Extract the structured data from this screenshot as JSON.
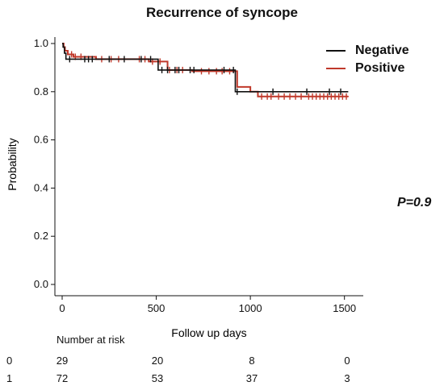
{
  "chart_data": {
    "type": "line",
    "title": "Recurrence of syncope",
    "xlabel": "Follow up days",
    "ylabel": "Probability",
    "xlim": [
      0,
      1600
    ],
    "ylim": [
      0,
      1.0
    ],
    "xticks": [
      0,
      500,
      1000,
      1500
    ],
    "yticks": [
      0.0,
      0.2,
      0.4,
      0.6,
      0.8,
      1.0
    ],
    "x_tick_labels": [
      "0",
      "500",
      "1000",
      "1500"
    ],
    "y_tick_labels": [
      "0.0",
      "0.2",
      "0.4",
      "0.6",
      "0.8",
      "1.0"
    ],
    "legend_position": "top-right",
    "annotation": "P=0.9",
    "series": [
      {
        "name": "Negative",
        "color": "#111111",
        "step_x": [
          0,
          5,
          12,
          20,
          510,
          920,
          1520
        ],
        "step_y": [
          1.0,
          0.985,
          0.96,
          0.935,
          0.89,
          0.8,
          0.8
        ],
        "censor_x": [
          40,
          120,
          140,
          160,
          250,
          330,
          420,
          470,
          530,
          560,
          600,
          620,
          680,
          700,
          860,
          910,
          930,
          1120,
          1300,
          1420,
          1480
        ]
      },
      {
        "name": "Positive",
        "color": "#c0392b",
        "step_x": [
          0,
          8,
          15,
          30,
          60,
          180,
          460,
          560,
          690,
          930,
          1000,
          1040,
          1520
        ],
        "step_y": [
          1.0,
          0.985,
          0.97,
          0.955,
          0.945,
          0.935,
          0.925,
          0.89,
          0.885,
          0.82,
          0.8,
          0.78,
          0.78
        ],
        "censor_x": [
          50,
          70,
          100,
          210,
          260,
          300,
          410,
          440,
          480,
          520,
          570,
          610,
          640,
          740,
          780,
          820,
          850,
          890,
          1060,
          1090,
          1110,
          1150,
          1180,
          1210,
          1240,
          1270,
          1310,
          1330,
          1350,
          1370,
          1390,
          1410,
          1430,
          1450,
          1470,
          1490,
          1510
        ]
      }
    ]
  },
  "risk_table": {
    "title": "Number at risk",
    "times": [
      0,
      500,
      1000,
      1500
    ],
    "rows": [
      {
        "group": "0",
        "values": [
          "29",
          "20",
          "8",
          "0"
        ]
      },
      {
        "group": "1",
        "values": [
          "72",
          "53",
          "37",
          "3"
        ]
      }
    ]
  }
}
